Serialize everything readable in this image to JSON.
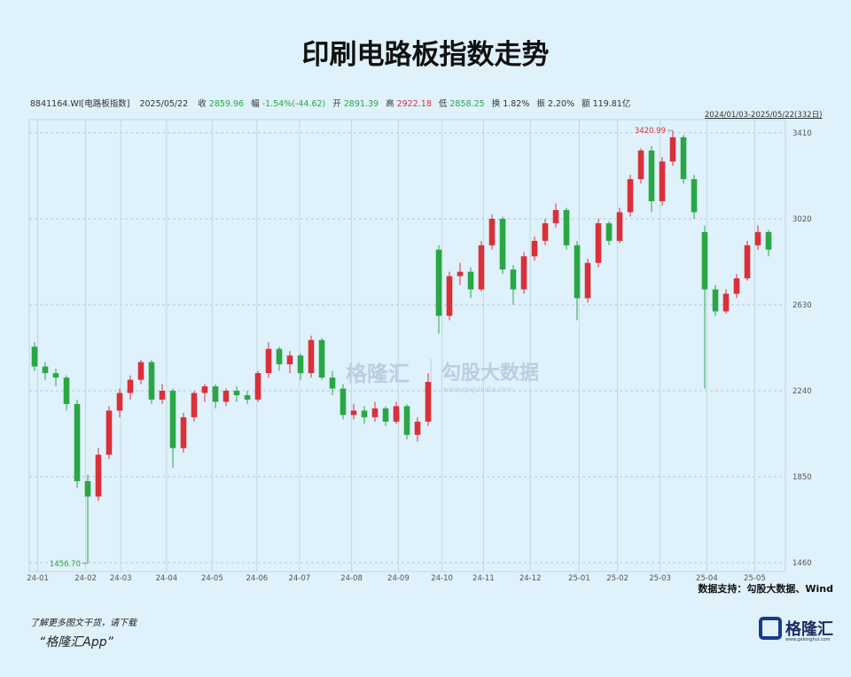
{
  "chart_data": {
    "type": "candlestick",
    "title": "印刷电路板指数走势",
    "ticker": "8841164.WI[电路板指数]",
    "date": "2025/05/22",
    "quote": [
      {
        "label": "收",
        "value": "2859.96",
        "color": "#2aa745"
      },
      {
        "label": "幅",
        "value": "-1.54%(-44.62)",
        "color": "#2aa745"
      },
      {
        "label": "开",
        "value": "2891.39",
        "color": "#2aa745"
      },
      {
        "label": "高",
        "value": "2922.18",
        "color": "#d9303a"
      },
      {
        "label": "低",
        "value": "2858.25",
        "color": "#2aa745"
      },
      {
        "label": "换",
        "value": "1.82%",
        "color": "#333333"
      },
      {
        "label": "振",
        "value": "2.20%",
        "color": "#333333"
      },
      {
        "label": "额",
        "value": "119.81亿",
        "color": "#333333"
      }
    ],
    "range_label": "2024/01/03-2025/05/22(332日)",
    "source": "数据支持：勾股大数据、Wind",
    "watermark": [
      "格隆汇",
      "勾股大数据",
      "www.gogudata.com"
    ],
    "promo": [
      "了解更多图文干货，请下载",
      "“格隆汇App”"
    ],
    "logo": [
      "格隆汇",
      "www.gelonghui.com"
    ],
    "up_color": "#d9303a",
    "down_color": "#2aa745",
    "grid": true,
    "ylim": [
      1420,
      3470
    ],
    "yticks": [
      1460,
      1850,
      2240,
      2630,
      3020,
      3410
    ],
    "xlim": [
      -0.5,
      69.5
    ],
    "xticks": [
      {
        "value": 0.3,
        "label": "24-01"
      },
      {
        "value": 4.8,
        "label": "24-02"
      },
      {
        "value": 8.1,
        "label": "24-03"
      },
      {
        "value": 12.4,
        "label": "24-04"
      },
      {
        "value": 16.7,
        "label": "24-05"
      },
      {
        "value": 20.9,
        "label": "24-06"
      },
      {
        "value": 24.9,
        "label": "24-07"
      },
      {
        "value": 29.8,
        "label": "24-08"
      },
      {
        "value": 34.2,
        "label": "24-09"
      },
      {
        "value": 38.3,
        "label": "24-10"
      },
      {
        "value": 42.2,
        "label": "24-11"
      },
      {
        "value": 46.6,
        "label": "24-12"
      },
      {
        "value": 51.2,
        "label": "25-01"
      },
      {
        "value": 54.8,
        "label": "25-02"
      },
      {
        "value": 58.8,
        "label": "25-03"
      },
      {
        "value": 63.2,
        "label": "25-04"
      },
      {
        "value": 67.7,
        "label": "25-05"
      }
    ],
    "candles": [
      {
        "o": 2440,
        "h": 2460,
        "l": 2330,
        "c": 2350
      },
      {
        "o": 2350,
        "h": 2370,
        "l": 2290,
        "c": 2320
      },
      {
        "o": 2320,
        "h": 2340,
        "l": 2260,
        "c": 2300
      },
      {
        "o": 2300,
        "h": 2310,
        "l": 2150,
        "c": 2180
      },
      {
        "o": 2180,
        "h": 2200,
        "l": 1800,
        "c": 1830
      },
      {
        "o": 1830,
        "h": 1860,
        "l": 1456.7,
        "c": 1760,
        "l_label": "1456.70"
      },
      {
        "o": 1760,
        "h": 1980,
        "l": 1740,
        "c": 1950
      },
      {
        "o": 1950,
        "h": 2170,
        "l": 1930,
        "c": 2150
      },
      {
        "o": 2150,
        "h": 2250,
        "l": 2120,
        "c": 2230
      },
      {
        "o": 2230,
        "h": 2310,
        "l": 2200,
        "c": 2290
      },
      {
        "o": 2290,
        "h": 2380,
        "l": 2270,
        "c": 2370
      },
      {
        "o": 2370,
        "h": 2380,
        "l": 2180,
        "c": 2200
      },
      {
        "o": 2200,
        "h": 2270,
        "l": 2180,
        "c": 2240
      },
      {
        "o": 2240,
        "h": 2250,
        "l": 1890,
        "c": 1980
      },
      {
        "o": 1980,
        "h": 2140,
        "l": 1960,
        "c": 2120
      },
      {
        "o": 2120,
        "h": 2240,
        "l": 2100,
        "c": 2230
      },
      {
        "o": 2230,
        "h": 2270,
        "l": 2190,
        "c": 2260
      },
      {
        "o": 2260,
        "h": 2270,
        "l": 2160,
        "c": 2190
      },
      {
        "o": 2190,
        "h": 2250,
        "l": 2170,
        "c": 2240
      },
      {
        "o": 2240,
        "h": 2260,
        "l": 2190,
        "c": 2220
      },
      {
        "o": 2220,
        "h": 2240,
        "l": 2180,
        "c": 2200
      },
      {
        "o": 2200,
        "h": 2330,
        "l": 2190,
        "c": 2320
      },
      {
        "o": 2320,
        "h": 2460,
        "l": 2300,
        "c": 2430
      },
      {
        "o": 2430,
        "h": 2440,
        "l": 2330,
        "c": 2360
      },
      {
        "o": 2360,
        "h": 2420,
        "l": 2320,
        "c": 2400
      },
      {
        "o": 2400,
        "h": 2410,
        "l": 2290,
        "c": 2320
      },
      {
        "o": 2320,
        "h": 2490,
        "l": 2300,
        "c": 2470
      },
      {
        "o": 2470,
        "h": 2480,
        "l": 2290,
        "c": 2300
      },
      {
        "o": 2300,
        "h": 2330,
        "l": 2220,
        "c": 2250
      },
      {
        "o": 2250,
        "h": 2270,
        "l": 2110,
        "c": 2130
      },
      {
        "o": 2130,
        "h": 2180,
        "l": 2110,
        "c": 2150
      },
      {
        "o": 2150,
        "h": 2170,
        "l": 2090,
        "c": 2120
      },
      {
        "o": 2120,
        "h": 2190,
        "l": 2100,
        "c": 2160
      },
      {
        "o": 2160,
        "h": 2170,
        "l": 2080,
        "c": 2100
      },
      {
        "o": 2100,
        "h": 2190,
        "l": 2090,
        "c": 2170
      },
      {
        "o": 2170,
        "h": 2180,
        "l": 2020,
        "c": 2040
      },
      {
        "o": 2040,
        "h": 2120,
        "l": 2010,
        "c": 2100
      },
      {
        "o": 2100,
        "h": 2320,
        "l": 2080,
        "c": 2280
      },
      {
        "o": 2880,
        "h": 2900,
        "l": 2500,
        "c": 2580
      },
      {
        "o": 2580,
        "h": 2780,
        "l": 2560,
        "c": 2760
      },
      {
        "o": 2760,
        "h": 2820,
        "l": 2720,
        "c": 2780
      },
      {
        "o": 2780,
        "h": 2800,
        "l": 2660,
        "c": 2700
      },
      {
        "o": 2700,
        "h": 2920,
        "l": 2690,
        "c": 2900
      },
      {
        "o": 2900,
        "h": 3040,
        "l": 2880,
        "c": 3020
      },
      {
        "o": 3020,
        "h": 3030,
        "l": 2770,
        "c": 2790
      },
      {
        "o": 2790,
        "h": 2810,
        "l": 2630,
        "c": 2700
      },
      {
        "o": 2700,
        "h": 2870,
        "l": 2680,
        "c": 2850
      },
      {
        "o": 2850,
        "h": 2940,
        "l": 2830,
        "c": 2920
      },
      {
        "o": 2920,
        "h": 3020,
        "l": 2900,
        "c": 3000
      },
      {
        "o": 3000,
        "h": 3090,
        "l": 2980,
        "c": 3060
      },
      {
        "o": 3060,
        "h": 3070,
        "l": 2880,
        "c": 2900
      },
      {
        "o": 2900,
        "h": 2920,
        "l": 2560,
        "c": 2660
      },
      {
        "o": 2660,
        "h": 2840,
        "l": 2640,
        "c": 2820
      },
      {
        "o": 2820,
        "h": 3020,
        "l": 2800,
        "c": 3000
      },
      {
        "o": 3000,
        "h": 3010,
        "l": 2900,
        "c": 2920
      },
      {
        "o": 2920,
        "h": 3070,
        "l": 2910,
        "c": 3050
      },
      {
        "o": 3050,
        "h": 3220,
        "l": 3030,
        "c": 3200
      },
      {
        "o": 3200,
        "h": 3340,
        "l": 3180,
        "c": 3330
      },
      {
        "o": 3330,
        "h": 3350,
        "l": 3050,
        "c": 3100
      },
      {
        "o": 3100,
        "h": 3300,
        "l": 3080,
        "c": 3280
      },
      {
        "o": 3280,
        "h": 3420.99,
        "l": 3260,
        "c": 3390
      },
      {
        "o": 3390,
        "h": 3400,
        "l": 3180,
        "c": 3200
      },
      {
        "o": 3200,
        "h": 3220,
        "l": 3020,
        "c": 3050
      },
      {
        "o": 2960,
        "h": 2990,
        "l": 2250,
        "c": 2700
      },
      {
        "o": 2700,
        "h": 2720,
        "l": 2580,
        "c": 2600
      },
      {
        "o": 2600,
        "h": 2700,
        "l": 2590,
        "c": 2680
      },
      {
        "o": 2680,
        "h": 2770,
        "l": 2660,
        "c": 2750
      },
      {
        "o": 2750,
        "h": 2920,
        "l": 2740,
        "c": 2900
      },
      {
        "o": 2900,
        "h": 2990,
        "l": 2880,
        "c": 2960
      },
      {
        "o": 2960,
        "h": 2970,
        "l": 2850,
        "c": 2880
      }
    ]
  }
}
